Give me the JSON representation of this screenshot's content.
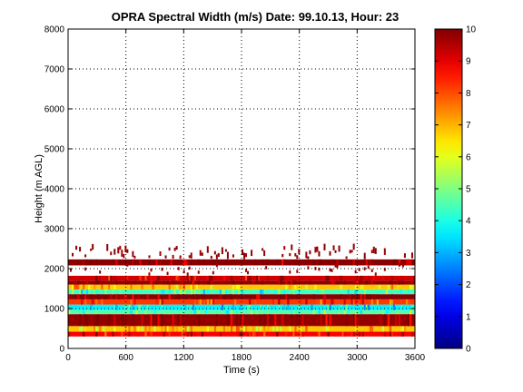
{
  "chart_data": {
    "type": "heatmap",
    "title": "OPRA Spectral Width (m/s)  Date: 99.10.13, Hour: 23",
    "xlabel": "Time (s)",
    "ylabel": "Height (m AGL)",
    "xlim": [
      0,
      3600
    ],
    "ylim": [
      0,
      8000
    ],
    "x_ticks": [
      "0",
      "600",
      "1200",
      "1800",
      "2400",
      "3000",
      "3600"
    ],
    "y_ticks": [
      "0",
      "1000",
      "2000",
      "3000",
      "4000",
      "5000",
      "6000",
      "7000",
      "8000"
    ],
    "grid": true,
    "colorbar": {
      "range": [
        0,
        10
      ],
      "ticks": [
        "0",
        "1",
        "2",
        "3",
        "4",
        "5",
        "6",
        "7",
        "8",
        "9",
        "10"
      ],
      "colormap": "jet"
    },
    "bands": [
      {
        "y0": 300,
        "y1": 420,
        "value": 8.8
      },
      {
        "y0": 420,
        "y1": 560,
        "value": 6.8
      },
      {
        "y0": 560,
        "y1": 860,
        "value": 9.8
      },
      {
        "y0": 860,
        "y1": 960,
        "value": 4.6
      },
      {
        "y0": 960,
        "y1": 1100,
        "value": 3.6
      },
      {
        "y0": 1100,
        "y1": 1230,
        "value": 8.2
      },
      {
        "y0": 1230,
        "y1": 1360,
        "value": 9.9
      },
      {
        "y0": 1360,
        "y1": 1480,
        "value": 4.4
      },
      {
        "y0": 1480,
        "y1": 1600,
        "value": 6.8
      },
      {
        "y0": 1600,
        "y1": 1700,
        "value": 9.8
      },
      {
        "y0": 1700,
        "y1": 1820,
        "value": 9.2
      },
      {
        "y0": 2080,
        "y1": 2230,
        "value": 9.9
      }
    ]
  }
}
